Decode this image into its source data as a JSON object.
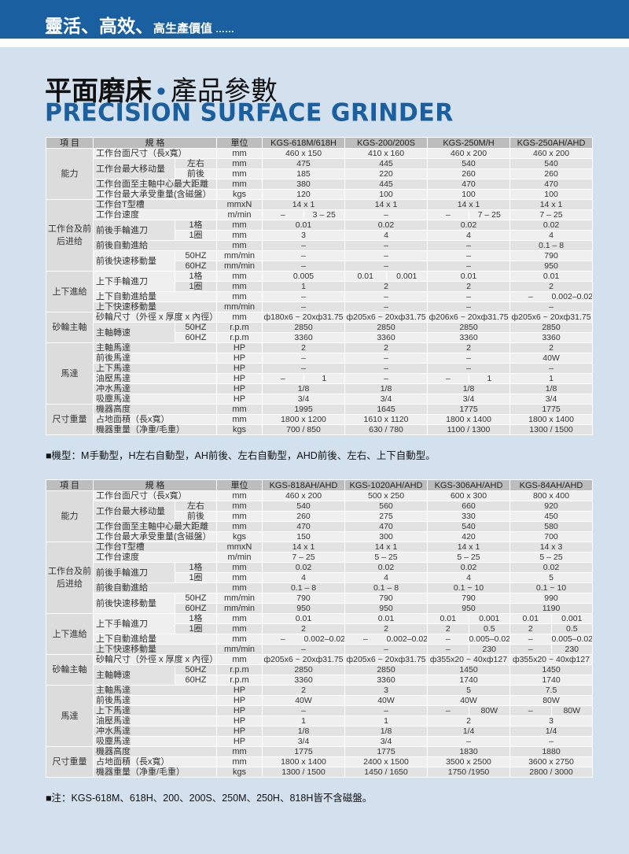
{
  "header": {
    "slogan_big": "靈活、高效、",
    "slogan_small": "高生產價值",
    "slogan_dots": "……"
  },
  "title": {
    "zh_left": "平面磨床",
    "dot": "•",
    "zh_right": "產品參數",
    "en": "PRECISION SURFACE GRINDER"
  },
  "colors": {
    "brand_blue": "#1a5fa0",
    "background": "#d3e0ee"
  },
  "tables": [
    {
      "head": {
        "item": "項 目",
        "spec": "規 格",
        "unit": "單位"
      },
      "models": [
        "KGS-618M/618H",
        "KGS-200/200S",
        "KGS-250M/H",
        "KGS-250AH/AHD"
      ],
      "groups": [
        {
          "name": "能力",
          "rows": [
            {
              "label": "工作台面尺寸（長x寬）",
              "unit": "mm",
              "values": [
                "460 x 150",
                "410 x 160",
                "460 x 200",
                "460 x 200"
              ]
            },
            {
              "label": "工作台最大移动量",
              "span": 2,
              "sub": "左右",
              "unit": "mm",
              "values": [
                "475",
                "445",
                "540",
                "540"
              ]
            },
            {
              "sub": "前後",
              "unit": "mm",
              "values": [
                "185",
                "220",
                "260",
                "260"
              ]
            },
            {
              "label": "工作台面至主軸中心最大距離",
              "unit": "mm",
              "values": [
                "380",
                "445",
                "470",
                "470"
              ]
            },
            {
              "label": "工作台最大承受重量(含磁盤）",
              "unit": "kgs",
              "values": [
                "120",
                "100",
                "100",
                "100"
              ]
            }
          ]
        },
        {
          "name": "工作台及前后进给",
          "rows": [
            {
              "label": "工作台T型槽",
              "unit": "mmxN",
              "values": [
                "14 x 1",
                "14 x 1",
                "14 x 1",
                "14 x 1"
              ]
            },
            {
              "label": "工作台速度",
              "unit": "m/min",
              "values": [
                [
                  "–",
                  "3 – 25"
                ],
                "–",
                [
                  "–",
                  "7 – 25"
                ],
                "7 – 25"
              ]
            },
            {
              "label": "前後手輪進刀",
              "span": 2,
              "sub": "1格",
              "unit": "mm",
              "values": [
                "0.01",
                "0.02",
                "0.02",
                "0.02"
              ]
            },
            {
              "sub": "1圈",
              "unit": "mm",
              "values": [
                "3",
                "4",
                "4",
                "4"
              ]
            },
            {
              "label": "前後自動進給",
              "unit": "mm",
              "values": [
                "–",
                "–",
                "–",
                "0.1 – 8"
              ]
            },
            {
              "label": "前後快速移動量",
              "span": 2,
              "sub": "50HZ",
              "unit": "mm/min",
              "values": [
                "–",
                "–",
                "–",
                "790"
              ]
            },
            {
              "sub": "60HZ",
              "unit": "mm/min",
              "values": [
                "–",
                "–",
                "–",
                "950"
              ]
            }
          ]
        },
        {
          "name": "上下進給",
          "rows": [
            {
              "label": "上下手輪進刀",
              "span": 2,
              "sub": "1格",
              "unit": "mm",
              "values": [
                "0.005",
                [
                  "0.01",
                  "0.001"
                ],
                "0.01",
                "0.01"
              ]
            },
            {
              "sub": "1圈",
              "unit": "mm",
              "values": [
                "1",
                "2",
                "2",
                "2"
              ]
            },
            {
              "label": "上下自動進給量",
              "unit": "mm",
              "values": [
                "–",
                "–",
                "–",
                [
                  "–",
                  "0.002–0.02"
                ]
              ]
            },
            {
              "label": "上下快速移動量",
              "unit": "mm/min",
              "values": [
                "–",
                "–",
                "–",
                "–"
              ]
            }
          ]
        },
        {
          "name": "砂輪主軸",
          "rows": [
            {
              "label": "砂輪尺寸（外徑 x 厚度 x 內徑）",
              "unit": "mm",
              "values": [
                "ф180x6 ~ 20xф31.75",
                "ф205x6 ~ 20xф31.75",
                "ф206x6 ~ 20xф31.75",
                "ф205x6 ~ 20xф31.75"
              ]
            },
            {
              "label": "主軸轉速",
              "span": 2,
              "sub": "50HZ",
              "unit": "r.p.m",
              "values": [
                "2850",
                "2850",
                "2850",
                "2850"
              ]
            },
            {
              "sub": "60HZ",
              "unit": "r.p.m",
              "values": [
                "3360",
                "3360",
                "3360",
                "3360"
              ]
            }
          ]
        },
        {
          "name": "馬達",
          "rows": [
            {
              "label": "主軸馬達",
              "unit": "HP",
              "values": [
                "2",
                "2",
                "2",
                "2"
              ]
            },
            {
              "label": "前後馬達",
              "unit": "HP",
              "values": [
                "–",
                "–",
                "–",
                "40W"
              ]
            },
            {
              "label": "上下馬達",
              "unit": "HP",
              "values": [
                "–",
                "–",
                "–",
                "–"
              ]
            },
            {
              "label": "油壓馬達",
              "unit": "HP",
              "values": [
                [
                  "–",
                  "1"
                ],
                "–",
                [
                  "–",
                  "1"
                ],
                "1"
              ]
            },
            {
              "label": "冲水馬達",
              "unit": "HP",
              "values": [
                "1/8",
                "1/8",
                "1/8",
                "1/8"
              ]
            },
            {
              "label": "吸塵馬達",
              "unit": "HP",
              "values": [
                "3/4",
                "3/4",
                "3/4",
                "3/4"
              ]
            }
          ]
        },
        {
          "name": "尺寸重量",
          "rows": [
            {
              "label": "機器高度",
              "unit": "mm",
              "values": [
                "1995",
                "1645",
                "1775",
                "1775"
              ]
            },
            {
              "label": "占地面積（長x寬）",
              "unit": "mm",
              "values": [
                "1800 x 1200",
                "1610 x 1120",
                "1800 x 1400",
                "1800 x 1400"
              ]
            },
            {
              "label": "機器重量（净重/毛重）",
              "unit": "kgs",
              "values": [
                "700 / 850",
                "630 / 780",
                "1100 / 1300",
                "1300 / 1500"
              ]
            }
          ]
        }
      ],
      "note": "■機型：M手動型，H左右自動型，AH前後、左右自動型，AHD前後、左右、上下自動型。"
    },
    {
      "head": {
        "item": "項 目",
        "spec": "規 格",
        "unit": "單位"
      },
      "models": [
        "KGS-818AH/AHD",
        "KGS-1020AH/AHD",
        "KGS-306AH/AHD",
        "KGS-84AH/AHD"
      ],
      "groups": [
        {
          "name": "能力",
          "rows": [
            {
              "label": "工作台面尺寸（長x寬）",
              "unit": "mm",
              "values": [
                "460 x 200",
                "500 x 250",
                "600 x 300",
                "800 x 400"
              ]
            },
            {
              "label": "工作台最大移动量",
              "span": 2,
              "sub": "左右",
              "unit": "mm",
              "values": [
                "540",
                "560",
                "660",
                "920"
              ]
            },
            {
              "sub": "前後",
              "unit": "mm",
              "values": [
                "260",
                "275",
                "330",
                "450"
              ]
            },
            {
              "label": "工作台面至主軸中心最大距離",
              "unit": "mm",
              "values": [
                "470",
                "470",
                "540",
                "580"
              ]
            },
            {
              "label": "工作台最大承受重量(含磁盤）",
              "unit": "kgs",
              "values": [
                "150",
                "300",
                "420",
                "700"
              ]
            }
          ]
        },
        {
          "name": "工作台及前后进给",
          "rows": [
            {
              "label": "工作台T型槽",
              "unit": "mmxN",
              "values": [
                "14 x 1",
                "14 x 1",
                "14 x 1",
                "14 x 3"
              ]
            },
            {
              "label": "工作台速度",
              "unit": "m/min",
              "values": [
                "7 – 25",
                "5 – 25",
                "5 – 25",
                "5 – 25"
              ]
            },
            {
              "label": "前後手輪進刀",
              "span": 2,
              "sub": "1格",
              "unit": "mm",
              "values": [
                "0.02",
                "0.02",
                "0.02",
                "0.02"
              ]
            },
            {
              "sub": "1圈",
              "unit": "mm",
              "values": [
                "4",
                "4",
                "4",
                "5"
              ]
            },
            {
              "label": "前後自動進給",
              "unit": "mm",
              "values": [
                "0.1 – 8",
                "0.1 – 8",
                "0.1 ~ 10",
                "0.1 ~ 10"
              ]
            },
            {
              "label": "前後快速移動量",
              "span": 2,
              "sub": "50HZ",
              "unit": "mm/min",
              "values": [
                "790",
                "790",
                "790",
                "990"
              ]
            },
            {
              "sub": "60HZ",
              "unit": "mm/min",
              "values": [
                "950",
                "950",
                "950",
                "1190"
              ]
            }
          ]
        },
        {
          "name": "上下進給",
          "rows": [
            {
              "label": "上下手輪進刀",
              "span": 2,
              "sub": "1格",
              "unit": "mm",
              "values": [
                "0.01",
                "0.01",
                [
                  "0.01",
                  "0.001"
                ],
                [
                  "0.01",
                  "0.001"
                ]
              ]
            },
            {
              "sub": "1圈",
              "unit": "mm",
              "values": [
                "2",
                "2",
                [
                  "2",
                  "0.5"
                ],
                [
                  "2",
                  "0.5"
                ]
              ]
            },
            {
              "label": "上下自動進給量",
              "unit": "mm",
              "values": [
                [
                  "–",
                  "0.002–0.02"
                ],
                [
                  "–",
                  "0.002–0.02"
                ],
                [
                  "–",
                  "0.005–0.025"
                ],
                [
                  "–",
                  "0.005–0.025"
                ]
              ]
            },
            {
              "label": "上下快速移動量",
              "unit": "mm/min",
              "values": [
                "–",
                "–",
                [
                  "–",
                  "230"
                ],
                [
                  "–",
                  "230"
                ]
              ]
            }
          ]
        },
        {
          "name": "砂輪主軸",
          "rows": [
            {
              "label": "砂輪尺寸（外徑 x 厚度 x 內徑）",
              "unit": "mm",
              "values": [
                "ф205x6 ~ 20xф31.75",
                "ф205x6 ~ 20xф31.75",
                "ф355x20 ~ 40xф127",
                "ф355x20 ~ 40xф127"
              ]
            },
            {
              "label": "主軸轉速",
              "span": 2,
              "sub": "50HZ",
              "unit": "r.p.m",
              "values": [
                "2850",
                "2850",
                "1450",
                "1450"
              ]
            },
            {
              "sub": "60HZ",
              "unit": "r.p.m",
              "values": [
                "3360",
                "3360",
                "1740",
                "1740"
              ]
            }
          ]
        },
        {
          "name": "馬達",
          "rows": [
            {
              "label": "主軸馬達",
              "unit": "HP",
              "values": [
                "2",
                "3",
                "5",
                "7.5"
              ]
            },
            {
              "label": "前後馬達",
              "unit": "HP",
              "values": [
                "40W",
                "40W",
                "40W",
                "80W"
              ]
            },
            {
              "label": "上下馬達",
              "unit": "HP",
              "values": [
                "–",
                "–",
                [
                  "–",
                  "80W"
                ],
                [
                  "–",
                  "80W"
                ]
              ]
            },
            {
              "label": "油壓馬達",
              "unit": "HP",
              "values": [
                "1",
                "1",
                "2",
                "3"
              ]
            },
            {
              "label": "冲水馬達",
              "unit": "HP",
              "values": [
                "1/8",
                "1/8",
                "1/4",
                "1/4"
              ]
            },
            {
              "label": "吸塵馬達",
              "unit": "HP",
              "values": [
                "3/4",
                "3/4",
                "–",
                "–"
              ]
            }
          ]
        },
        {
          "name": "尺寸重量",
          "rows": [
            {
              "label": "機器高度",
              "unit": "mm",
              "values": [
                "1775",
                "1775",
                "1830",
                "1880"
              ]
            },
            {
              "label": "占地面積（長x寬）",
              "unit": "mm",
              "values": [
                "1800 x 1400",
                "2400 x 1500",
                "3500 x 2500",
                "3600 x 2750"
              ]
            },
            {
              "label": "機器重量（净重/毛重）",
              "unit": "kgs",
              "values": [
                "1300 / 1500",
                "1450 / 1650",
                "1750 /1950",
                "2800 / 3000"
              ]
            }
          ]
        }
      ],
      "note": "■注：KGS-618M、618H、200、200S、250M、250H、818H皆不含磁盤。"
    }
  ]
}
